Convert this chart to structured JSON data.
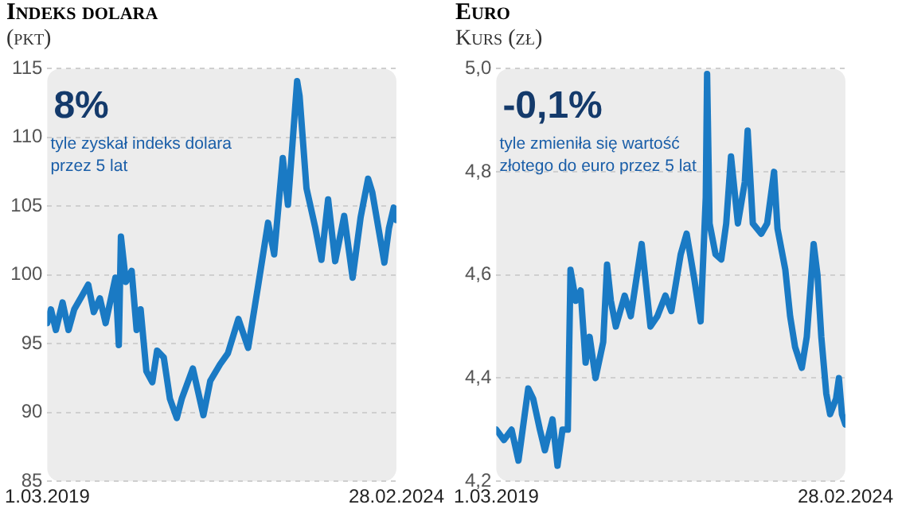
{
  "chart_data": [
    {
      "type": "line",
      "title": "Indeks dolara",
      "subtitle": "(pkt)",
      "annotations": [
        "8%",
        "tyle zyskał indeks dolara przez 5 lat"
      ],
      "x": [
        "2019-03-01",
        "2019-03-20",
        "2019-04-15",
        "2019-05-20",
        "2019-06-20",
        "2019-07-20",
        "2019-08-30",
        "2019-10-01",
        "2019-10-30",
        "2019-12-01",
        "2019-12-31",
        "2020-02-20",
        "2020-03-09",
        "2020-03-20",
        "2020-04-15",
        "2020-05-15",
        "2020-06-10",
        "2020-07-01",
        "2020-07-31",
        "2020-08-31",
        "2020-09-25",
        "2020-10-30",
        "2020-12-01",
        "2021-01-06",
        "2021-02-01",
        "2021-03-31",
        "2021-05-25",
        "2021-06-30",
        "2021-08-20",
        "2021-09-30",
        "2021-11-24",
        "2022-01-14",
        "2022-03-07",
        "2022-04-28",
        "2022-05-30",
        "2022-07-14",
        "2022-08-10",
        "2022-09-27",
        "2022-10-10",
        "2022-11-15",
        "2022-12-30",
        "2023-02-01",
        "2023-03-08",
        "2023-04-14",
        "2023-05-31",
        "2023-07-14",
        "2023-08-25",
        "2023-10-03",
        "2023-10-25",
        "2023-12-27",
        "2024-01-20",
        "2024-02-14",
        "2024-02-28"
      ],
      "series": [
        {
          "color": "#1a7ac4",
          "values": [
            96.5,
            97.5,
            96,
            98,
            96,
            97.5,
            98.5,
            99.3,
            97.3,
            98.3,
            96.5,
            99.8,
            94.9,
            102.8,
            99.5,
            100.3,
            96,
            97.5,
            93,
            92.2,
            94.5,
            94,
            91,
            89.6,
            91,
            93.2,
            89.8,
            92.3,
            93.5,
            94.3,
            96.8,
            94.7,
            99.2,
            103.8,
            101.5,
            108.5,
            105.1,
            114.1,
            113,
            106.3,
            103.5,
            101.1,
            105.5,
            101,
            104.3,
            99.8,
            104.2,
            107,
            106,
            100.9,
            103.4,
            104.9,
            104
          ]
        }
      ],
      "xlim": [
        "2019-03-01",
        "2024-02-28"
      ],
      "xticks": [
        {
          "value": "2019-03-01",
          "label": "1.03.2019"
        },
        {
          "value": "2024-02-28",
          "label": "28.02.2024"
        }
      ],
      "ylim": [
        85,
        115
      ],
      "yticks": [
        85,
        90,
        95,
        100,
        105,
        110,
        115
      ],
      "grid": "y",
      "legend": false,
      "marker": "none",
      "line_style": "solid"
    },
    {
      "type": "line",
      "title": "Euro",
      "subtitle": "Kurs (zł)",
      "annotations": [
        "-0,1%",
        "tyle zmieniła się wartość złotego do euro przez 5 lat"
      ],
      "x": [
        "2019-03-01",
        "2019-04-10",
        "2019-05-20",
        "2019-06-25",
        "2019-08-15",
        "2019-09-10",
        "2019-10-15",
        "2019-11-10",
        "2019-12-20",
        "2020-01-15",
        "2020-02-10",
        "2020-03-09",
        "2020-03-23",
        "2020-04-20",
        "2020-05-15",
        "2020-06-10",
        "2020-07-01",
        "2020-08-01",
        "2020-09-10",
        "2020-09-30",
        "2020-10-20",
        "2020-11-15",
        "2020-12-31",
        "2021-02-01",
        "2021-03-30",
        "2021-05-15",
        "2021-06-20",
        "2021-08-01",
        "2021-09-01",
        "2021-10-20",
        "2021-11-20",
        "2021-12-31",
        "2022-02-01",
        "2022-02-28",
        "2022-03-07",
        "2022-03-20",
        "2022-04-20",
        "2022-05-20",
        "2022-06-15",
        "2022-07-10",
        "2022-08-15",
        "2022-09-20",
        "2022-10-05",
        "2022-11-01",
        "2022-12-15",
        "2023-01-15",
        "2023-02-20",
        "2023-03-10",
        "2023-04-20",
        "2023-05-15",
        "2023-06-10",
        "2023-07-15",
        "2023-08-10",
        "2023-09-15",
        "2023-10-05",
        "2023-10-25",
        "2023-11-20",
        "2023-12-10",
        "2024-01-10",
        "2024-01-25",
        "2024-02-10",
        "2024-02-28"
      ],
      "series": [
        {
          "color": "#1a7ac4",
          "values": [
            4.3,
            4.28,
            4.3,
            4.24,
            4.38,
            4.36,
            4.3,
            4.26,
            4.32,
            4.23,
            4.3,
            4.3,
            4.61,
            4.55,
            4.57,
            4.43,
            4.48,
            4.4,
            4.47,
            4.62,
            4.55,
            4.5,
            4.56,
            4.52,
            4.66,
            4.5,
            4.52,
            4.56,
            4.53,
            4.64,
            4.68,
            4.59,
            4.51,
            4.75,
            4.99,
            4.7,
            4.64,
            4.63,
            4.7,
            4.83,
            4.7,
            4.78,
            4.88,
            4.7,
            4.68,
            4.7,
            4.8,
            4.69,
            4.61,
            4.52,
            4.46,
            4.42,
            4.48,
            4.66,
            4.6,
            4.48,
            4.37,
            4.33,
            4.36,
            4.4,
            4.33,
            4.31
          ]
        }
      ],
      "xlim": [
        "2019-03-01",
        "2024-02-28"
      ],
      "xticks": [
        {
          "value": "2019-03-01",
          "label": "1.03.2019"
        },
        {
          "value": "2024-02-28",
          "label": "28.02.2024"
        }
      ],
      "ylim": [
        4.2,
        5.0
      ],
      "yticks": [
        {
          "value": 4.2,
          "label": "4,2"
        },
        {
          "value": 4.4,
          "label": "4,4"
        },
        {
          "value": 4.6,
          "label": "4,6"
        },
        {
          "value": 4.8,
          "label": "4,8"
        },
        {
          "value": 5.0,
          "label": "5,0"
        }
      ],
      "grid": "y",
      "legend": false,
      "marker": "none",
      "line_style": "solid"
    }
  ]
}
